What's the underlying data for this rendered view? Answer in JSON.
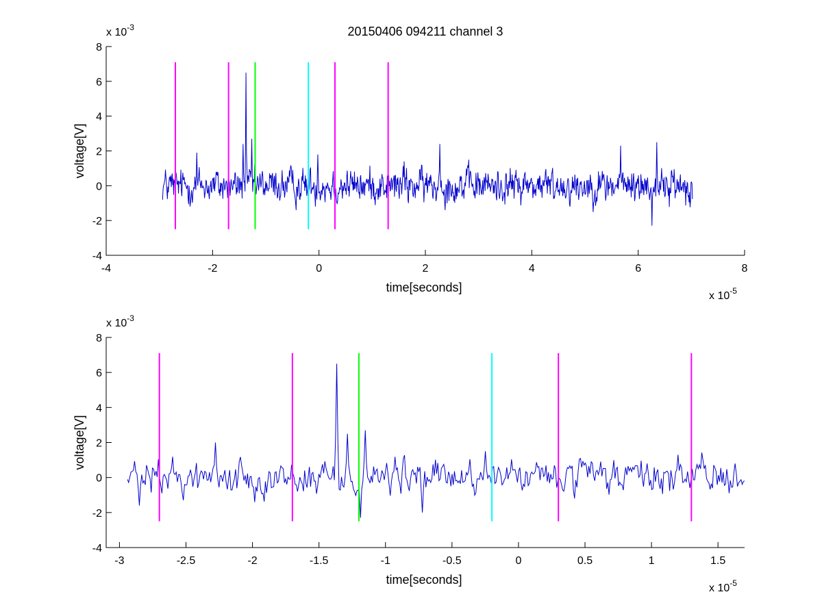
{
  "chart_data": [
    {
      "type": "line",
      "title": "20150406 094211 channel 3",
      "xlabel": "time[seconds]",
      "ylabel": "voltage[V]",
      "xlim": [
        -4,
        8
      ],
      "ylim": [
        -4,
        8
      ],
      "x_multiplier": {
        "base": "x 10",
        "exp": "-5"
      },
      "y_multiplier": {
        "base": "x 10",
        "exp": "-3"
      },
      "xticks": [
        "-4",
        "-2",
        "0",
        "2",
        "4",
        "6",
        "8"
      ],
      "yticks": [
        "-4",
        "-2",
        "0",
        "2",
        "4",
        "6",
        "8"
      ],
      "signal": {
        "color": "#0000cc",
        "x_range": [
          -2.94,
          7.02
        ],
        "samples": 1100,
        "baseline_noise_amplitude": 0.8,
        "peaks": [
          {
            "x": -1.37,
            "y": 6.5
          },
          {
            "x": -1.26,
            "y": 2.7
          },
          {
            "x": -1.43,
            "y": 2.4
          },
          {
            "x": -0.02,
            "y": 1.8
          },
          {
            "x": 2.27,
            "y": 2.4
          },
          {
            "x": 5.67,
            "y": 2.3
          },
          {
            "x": 6.35,
            "y": 2.5
          },
          {
            "x": 6.26,
            "y": -2.3
          },
          {
            "x": 1.6,
            "y": 1.4
          },
          {
            "x": -2.3,
            "y": 1.9
          }
        ]
      },
      "markers": [
        {
          "x": -2.7,
          "y0": -2.5,
          "y1": 7.1,
          "color": "#ff00ff"
        },
        {
          "x": -1.7,
          "y0": -2.5,
          "y1": 7.1,
          "color": "#ff00ff"
        },
        {
          "x": -1.2,
          "y0": -2.5,
          "y1": 7.1,
          "color": "#00ff00"
        },
        {
          "x": -0.2,
          "y0": -2.5,
          "y1": 7.1,
          "color": "#00ffff"
        },
        {
          "x": 0.3,
          "y0": -2.5,
          "y1": 7.1,
          "color": "#ff00ff"
        },
        {
          "x": 1.3,
          "y0": -2.5,
          "y1": 7.1,
          "color": "#ff00ff"
        }
      ]
    },
    {
      "type": "line",
      "title": "",
      "xlabel": "time[seconds]",
      "ylabel": "voltage[V]",
      "xlim": [
        -3.1,
        1.7
      ],
      "ylim": [
        -4,
        8
      ],
      "x_multiplier": {
        "base": "x 10",
        "exp": "-5"
      },
      "y_multiplier": {
        "base": "x 10",
        "exp": "-3"
      },
      "xticks": [
        "-3",
        "-2.5",
        "-2",
        "-1.5",
        "-1",
        "-0.5",
        "0",
        "0.5",
        "1",
        "1.5"
      ],
      "yticks": [
        "-4",
        "-2",
        "0",
        "2",
        "4",
        "6",
        "8"
      ],
      "signal": {
        "color": "#0000cc",
        "x_range": [
          -2.94,
          1.7
        ],
        "samples": 520,
        "baseline_noise_amplitude": 0.8,
        "peaks": [
          {
            "x": -1.37,
            "y": 6.5
          },
          {
            "x": -1.29,
            "y": 2.5
          },
          {
            "x": -1.15,
            "y": 2.7
          },
          {
            "x": -2.28,
            "y": 2.0
          },
          {
            "x": -2.85,
            "y": -1.6
          },
          {
            "x": -1.19,
            "y": -2.3
          },
          {
            "x": -0.25,
            "y": 1.5
          },
          {
            "x": 1.2,
            "y": 1.3
          },
          {
            "x": 1.63,
            "y": 0.8
          },
          {
            "x": -0.72,
            "y": -2.0
          }
        ]
      },
      "markers": [
        {
          "x": -2.7,
          "y0": -2.5,
          "y1": 7.1,
          "color": "#ff00ff"
        },
        {
          "x": -1.7,
          "y0": -2.5,
          "y1": 7.1,
          "color": "#ff00ff"
        },
        {
          "x": -1.2,
          "y0": -2.5,
          "y1": 7.1,
          "color": "#00ff00"
        },
        {
          "x": -0.2,
          "y0": -2.5,
          "y1": 7.1,
          "color": "#00ffff"
        },
        {
          "x": 0.3,
          "y0": -2.5,
          "y1": 7.1,
          "color": "#ff00ff"
        },
        {
          "x": 1.3,
          "y0": -2.5,
          "y1": 7.1,
          "color": "#ff00ff"
        }
      ]
    }
  ]
}
